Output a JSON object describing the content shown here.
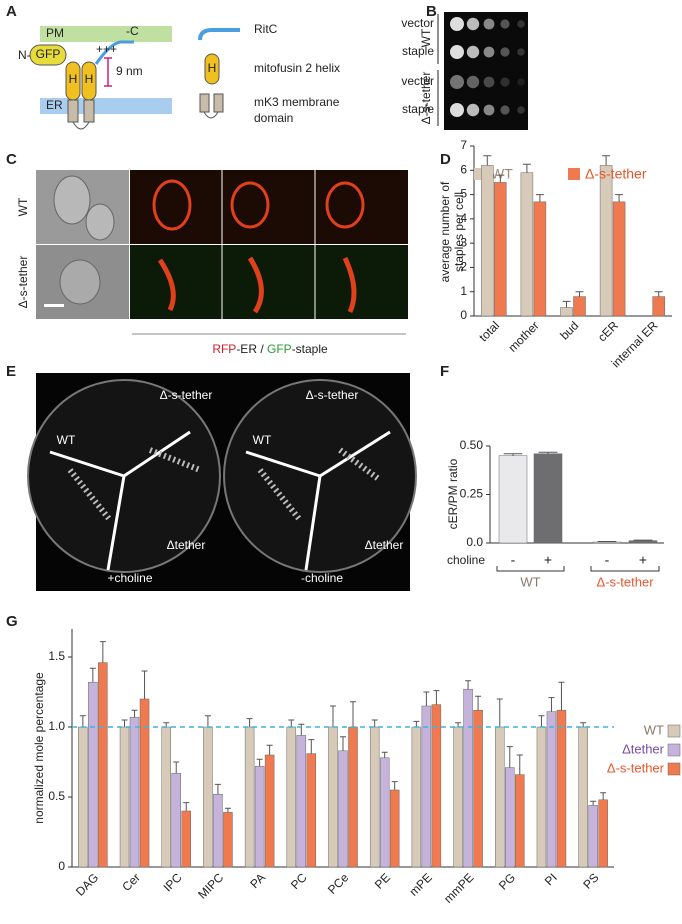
{
  "panel_labels": [
    "A",
    "B",
    "C",
    "D",
    "E",
    "F",
    "G"
  ],
  "panel_a": {
    "pm": "PM",
    "n_term": "N-",
    "gfp": "GFP",
    "charge": "+++",
    "c_term": "-C",
    "helix_1": "H",
    "helix_2": "H",
    "distance": "9 nm",
    "er": "ER",
    "ritc": "RitC",
    "helix_icon": "H",
    "helix_label": "mitofusin 2 helix",
    "mk3_label": [
      "mK3 membrane",
      "domain"
    ]
  },
  "panel_b": {
    "strains": [
      "WT",
      "Δ-s-tether"
    ],
    "rows": [
      "vector",
      "staple",
      "vector",
      "staple"
    ]
  },
  "panel_c": {
    "rows": [
      "WT",
      "Δ-s-tether"
    ],
    "caption": [
      "RFP",
      "-ER / ",
      "GFP",
      "-staple"
    ]
  },
  "panel_e": {
    "plates": [
      {
        "labels": [
          "Δ-s-tether",
          "WT",
          "Δtether"
        ],
        "condition": "+choline"
      },
      {
        "labels": [
          "Δ-s-tether",
          "WT",
          "Δtether"
        ],
        "condition": "-choline"
      }
    ]
  },
  "chart_data": [
    {
      "type": "bar",
      "y_label": [
        "average number of",
        "staples per cell"
      ],
      "categories": [
        "total",
        "mother",
        "bud",
        "cER",
        "internal ER"
      ],
      "series": [
        {
          "name": "WT",
          "color": "#d7cab8",
          "values": [
            6.2,
            5.9,
            0.35,
            6.2,
            null
          ],
          "errors": [
            0.4,
            0.35,
            0.25,
            0.4,
            null
          ]
        },
        {
          "name": "Δ-s-tether",
          "color": "#f07a50",
          "values": [
            5.5,
            4.7,
            0.8,
            4.7,
            0.8
          ],
          "errors": [
            0.3,
            0.3,
            0.2,
            0.3,
            0.2
          ]
        }
      ],
      "ylim": [
        0,
        7
      ],
      "yticks": [
        0,
        1,
        2,
        3,
        4,
        5,
        6,
        7
      ]
    },
    {
      "type": "bar",
      "y_label": "cER/PM ratio",
      "x_label": "choline",
      "categories": [
        "-",
        "+",
        "-",
        "+"
      ],
      "groups": [
        "WT",
        "Δ-s-tether"
      ],
      "values": [
        0.45,
        0.46,
        0.005,
        0.012
      ],
      "errors": [
        0.01,
        0.008,
        0.003,
        0.003
      ],
      "colors": [
        "#e9e9eb",
        "#6e6e70",
        "#e9e9eb",
        "#6e6e70"
      ],
      "ylim": [
        0,
        0.5
      ],
      "yticks": [
        {
          "value": 0,
          "label": "0.0"
        },
        0.25,
        {
          "value": 0.5,
          "label": "0.50"
        }
      ]
    },
    {
      "type": "bar",
      "y_label": "normalized mole percentage",
      "categories": [
        "DAG",
        "Cer",
        "IPC",
        "MIPC",
        "PA",
        "PC",
        "PCe",
        "PE",
        "mPE",
        "mmPE",
        "PG",
        "PI",
        "PS"
      ],
      "series": [
        {
          "name": "WT",
          "color": "#d7cab8",
          "values": [
            1,
            1,
            1,
            1,
            1,
            1,
            1,
            1,
            1,
            1,
            1,
            1,
            1
          ],
          "errors": [
            0.08,
            0.05,
            0.03,
            0.08,
            0.06,
            0.05,
            0.15,
            0.05,
            0.04,
            0.03,
            0.2,
            0.08,
            0.03
          ]
        },
        {
          "name": "Δtether",
          "color": "#c6b3dc",
          "values": [
            1.32,
            1.07,
            0.67,
            0.52,
            0.72,
            0.94,
            0.83,
            0.78,
            1.15,
            1.27,
            0.71,
            1.11,
            0.44
          ],
          "errors": [
            0.1,
            0.05,
            0.08,
            0.07,
            0.05,
            0.08,
            0.1,
            0.04,
            0.1,
            0.06,
            0.15,
            0.1,
            0.03
          ]
        },
        {
          "name": "Δ-s-tether",
          "color": "#f07a50",
          "values": [
            1.46,
            1.2,
            0.4,
            0.39,
            0.8,
            0.81,
            1.0,
            0.55,
            1.16,
            1.12,
            0.66,
            1.12,
            0.48
          ],
          "errors": [
            0.15,
            0.2,
            0.06,
            0.03,
            0.07,
            0.1,
            0.18,
            0.06,
            0.1,
            0.1,
            0.14,
            0.2,
            0.05
          ]
        }
      ],
      "ref_line": 1.0,
      "ylim": [
        0,
        1.7
      ],
      "yticks": [
        0,
        0.5,
        {
          "value": 1,
          "label": "1.0"
        },
        1.5
      ]
    }
  ]
}
